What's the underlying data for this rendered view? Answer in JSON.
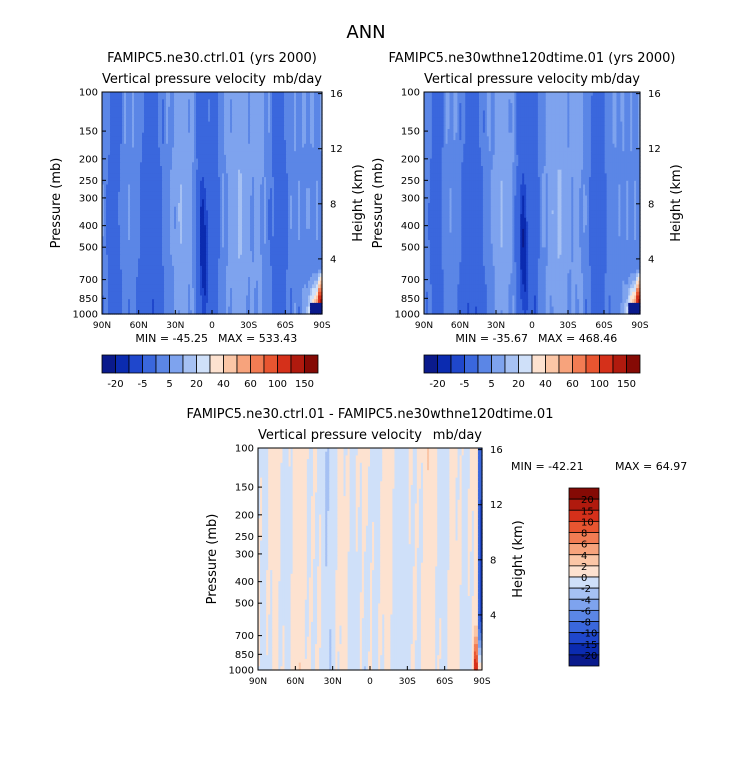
{
  "page": {
    "title": "ANN"
  },
  "colors": {
    "blues": [
      "#0a1a8c",
      "#0b2bb0",
      "#1f47cc",
      "#3a67dd",
      "#5b86e6",
      "#7ea3ee",
      "#a6c1f3",
      "#cfe0f9"
    ],
    "reds": [
      "#fde2d0",
      "#fbc6a6",
      "#f7a37c",
      "#f27c53",
      "#e85530",
      "#d5301a",
      "#b01a0e",
      "#850a05"
    ]
  },
  "chart_data": [
    {
      "type": "heatmap",
      "title": "FAMIPC5.ne30.ctrl.01 (yrs 2000)",
      "subtitle_left": "Vertical pressure velocity",
      "subtitle_right": "mb/day",
      "xlabel": "",
      "ylabel": "Pressure (mb)",
      "ylabel_right": "Height (km)",
      "x_ticks": [
        "90N",
        "60N",
        "30N",
        "0",
        "30S",
        "60S",
        "90S"
      ],
      "y_ticks": [
        "100",
        "150",
        "200",
        "250",
        "300",
        "400",
        "500",
        "700",
        "850",
        "1000"
      ],
      "y_right_ticks": [
        "16",
        "12",
        "8",
        "4"
      ],
      "min_label": "MIN = -45.25",
      "max_label": "MAX = 533.43",
      "min": -45.25,
      "max": 533.43,
      "colorbar_labels": [
        "-20",
        "-5",
        "5",
        "20",
        "40",
        "60",
        "100",
        "150"
      ],
      "colorbar_levels": [
        -25,
        -20,
        -15,
        -5,
        -1,
        5,
        10,
        20,
        30,
        40,
        50,
        60,
        80,
        100,
        150,
        200
      ]
    },
    {
      "type": "heatmap",
      "title": "FAMIPC5.ne30wthne120dtime.01 (yrs 2000)",
      "subtitle_left": "Vertical pressure velocity",
      "subtitle_right": "mb/day",
      "xlabel": "",
      "ylabel": "Pressure (mb)",
      "ylabel_right": "Height (km)",
      "x_ticks": [
        "90N",
        "60N",
        "30N",
        "0",
        "30S",
        "60S",
        "90S"
      ],
      "y_ticks": [
        "100",
        "150",
        "200",
        "250",
        "300",
        "400",
        "500",
        "700",
        "850",
        "1000"
      ],
      "y_right_ticks": [
        "16",
        "12",
        "8",
        "4"
      ],
      "min_label": "MIN = -35.67",
      "max_label": "MAX = 468.46",
      "min": -35.67,
      "max": 468.46,
      "colorbar_labels": [
        "-20",
        "-5",
        "5",
        "20",
        "40",
        "60",
        "100",
        "150"
      ],
      "colorbar_levels": [
        -25,
        -20,
        -15,
        -5,
        -1,
        5,
        10,
        20,
        30,
        40,
        50,
        60,
        80,
        100,
        150,
        200
      ]
    },
    {
      "type": "heatmap",
      "title": "FAMIPC5.ne30.ctrl.01 - FAMIPC5.ne30wthne120dtime.01",
      "subtitle_left": "Vertical pressure velocity",
      "subtitle_right": "mb/day",
      "xlabel": "",
      "ylabel": "Pressure (mb)",
      "ylabel_right": "Height (km)",
      "x_ticks": [
        "90N",
        "60N",
        "30N",
        "0",
        "30S",
        "60S",
        "90S"
      ],
      "y_ticks": [
        "100",
        "150",
        "200",
        "250",
        "300",
        "400",
        "500",
        "700",
        "850",
        "1000"
      ],
      "y_right_ticks": [
        "16",
        "12",
        "8",
        "4"
      ],
      "min_label": "MIN = -42.21",
      "max_label": "MAX =  64.97",
      "min": -42.21,
      "max": 64.97,
      "colorbar_labels": [
        "20",
        "15",
        "10",
        "8",
        "6",
        "4",
        "2",
        "0",
        "-2",
        "-4",
        "-6",
        "-8",
        "-10",
        "-15",
        "-20"
      ],
      "colorbar_levels": [
        20,
        15,
        10,
        8,
        6,
        4,
        2,
        0,
        -2,
        -4,
        -6,
        -8,
        -10,
        -15,
        -20
      ]
    }
  ]
}
